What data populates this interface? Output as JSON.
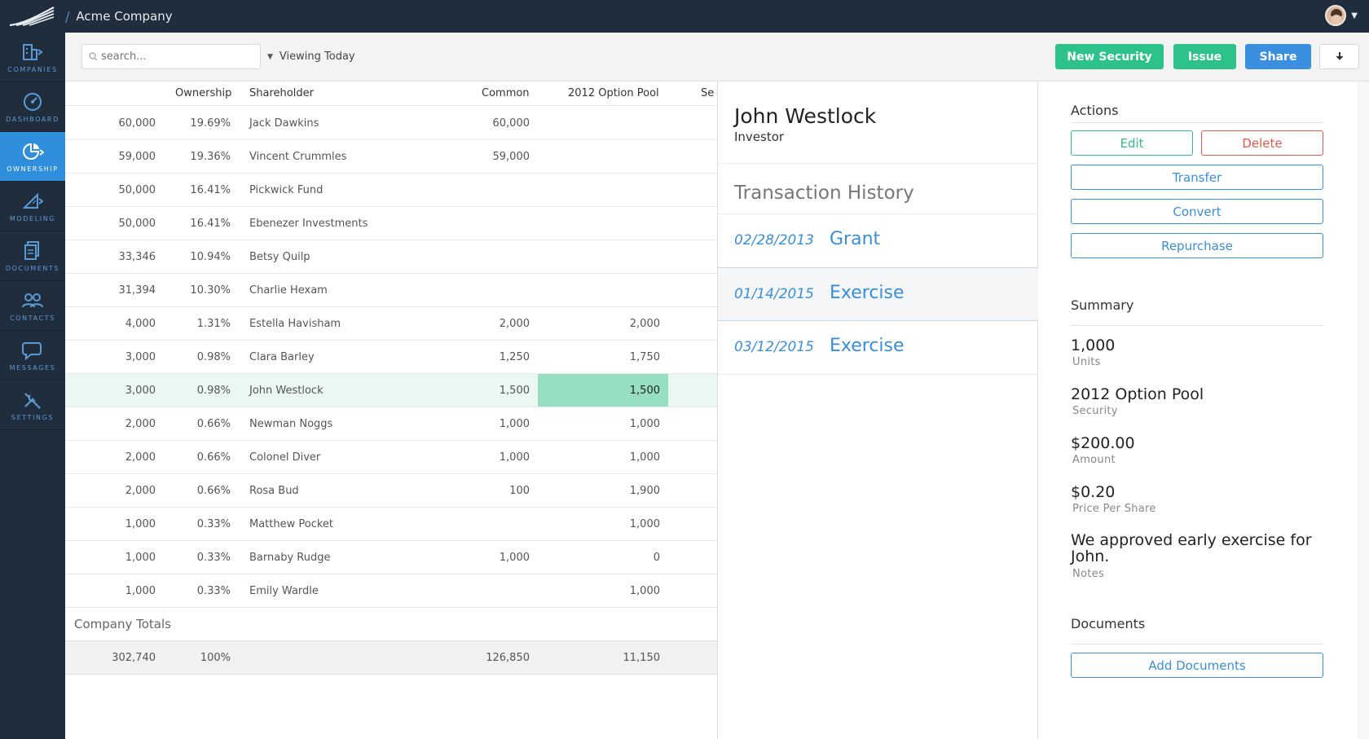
{
  "header": {
    "company": "Acme Company"
  },
  "nav": [
    {
      "label": "COMPANIES",
      "icon": "building-icon",
      "active": false
    },
    {
      "label": "DASHBOARD",
      "icon": "gauge-icon",
      "active": false
    },
    {
      "label": "OWNERSHIP",
      "icon": "pie-chart-icon",
      "active": true
    },
    {
      "label": "MODELING",
      "icon": "ruler-icon",
      "active": false
    },
    {
      "label": "DOCUMENTS",
      "icon": "documents-icon",
      "active": false
    },
    {
      "label": "CONTACTS",
      "icon": "people-icon",
      "active": false
    },
    {
      "label": "MESSAGES",
      "icon": "chat-icon",
      "active": false
    },
    {
      "label": "SETTINGS",
      "icon": "tools-icon",
      "active": false
    }
  ],
  "toolbar": {
    "search_placeholder": "search...",
    "view_label": "Viewing Today",
    "new_security": "New Security",
    "issue": "Issue",
    "share": "Share"
  },
  "table": {
    "columns": {
      "ownership": "Ownership",
      "shareholder": "Shareholder",
      "common": "Common",
      "option_pool": "2012 Option Pool",
      "next": "Se"
    },
    "rows": [
      {
        "shares": "60,000",
        "ownership": "19.69%",
        "name": "Jack Dawkins",
        "common": "60,000",
        "option_pool": ""
      },
      {
        "shares": "59,000",
        "ownership": "19.36%",
        "name": "Vincent Crummles",
        "common": "59,000",
        "option_pool": ""
      },
      {
        "shares": "50,000",
        "ownership": "16.41%",
        "name": "Pickwick Fund",
        "common": "",
        "option_pool": ""
      },
      {
        "shares": "50,000",
        "ownership": "16.41%",
        "name": "Ebenezer Investments",
        "common": "",
        "option_pool": ""
      },
      {
        "shares": "33,346",
        "ownership": "10.94%",
        "name": "Betsy Quilp",
        "common": "",
        "option_pool": ""
      },
      {
        "shares": "31,394",
        "ownership": "10.30%",
        "name": "Charlie Hexam",
        "common": "",
        "option_pool": ""
      },
      {
        "shares": "4,000",
        "ownership": "1.31%",
        "name": "Estella Havisham",
        "common": "2,000",
        "option_pool": "2,000"
      },
      {
        "shares": "3,000",
        "ownership": "0.98%",
        "name": "Clara Barley",
        "common": "1,250",
        "option_pool": "1,750"
      },
      {
        "shares": "3,000",
        "ownership": "0.98%",
        "name": "John Westlock",
        "common": "1,500",
        "option_pool": "1,500",
        "selected": true
      },
      {
        "shares": "2,000",
        "ownership": "0.66%",
        "name": "Newman Noggs",
        "common": "1,000",
        "option_pool": "1,000"
      },
      {
        "shares": "2,000",
        "ownership": "0.66%",
        "name": "Colonel Diver",
        "common": "1,000",
        "option_pool": "1,000"
      },
      {
        "shares": "2,000",
        "ownership": "0.66%",
        "name": "Rosa Bud",
        "common": "100",
        "option_pool": "1,900"
      },
      {
        "shares": "1,000",
        "ownership": "0.33%",
        "name": "Matthew Pocket",
        "common": "",
        "option_pool": "1,000"
      },
      {
        "shares": "1,000",
        "ownership": "0.33%",
        "name": "Barnaby Rudge",
        "common": "1,000",
        "option_pool": "0"
      },
      {
        "shares": "1,000",
        "ownership": "0.33%",
        "name": "Emily Wardle",
        "common": "",
        "option_pool": "1,000"
      }
    ],
    "company_totals_label": "Company Totals",
    "totals": {
      "shares": "302,740",
      "ownership": "100%",
      "common": "126,850",
      "option_pool": "11,150"
    }
  },
  "detail": {
    "name": "John Westlock",
    "role": "Investor",
    "history_title": "Transaction History",
    "transactions": [
      {
        "date": "02/28/2013",
        "type": "Grant"
      },
      {
        "date": "01/14/2015",
        "type": "Exercise",
        "active": true
      },
      {
        "date": "03/12/2015",
        "type": "Exercise"
      }
    ]
  },
  "actions": {
    "title": "Actions",
    "edit": "Edit",
    "delete": "Delete",
    "transfer": "Transfer",
    "convert": "Convert",
    "repurchase": "Repurchase"
  },
  "summary": {
    "title": "Summary",
    "items": [
      {
        "value": "1,000",
        "label": "Units"
      },
      {
        "value": "2012 Option Pool",
        "label": "Security"
      },
      {
        "value": "$200.00",
        "label": "Amount"
      },
      {
        "value": "$0.20",
        "label": "Price Per Share"
      },
      {
        "value": "We approved early exercise for John.",
        "label": "Notes"
      }
    ]
  },
  "documents": {
    "title": "Documents",
    "add": "Add Documents"
  },
  "colors": {
    "navy": "#1f2d3d",
    "blue": "#3a8fe0",
    "green": "#2cc28a",
    "red": "#e4574b",
    "highlight": "#96dfc2"
  }
}
